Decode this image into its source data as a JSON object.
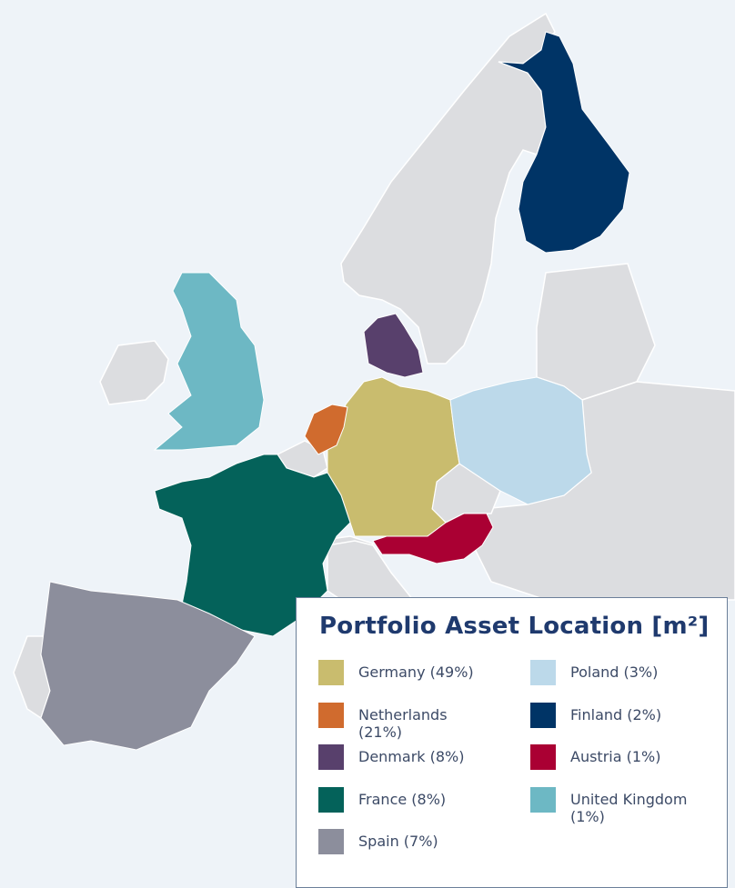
{
  "legend": {
    "title": "Portfolio Asset Location [m²]",
    "items": [
      {
        "label": "Germany (49%)",
        "color": "#c9bc6e"
      },
      {
        "label": "Netherlands (21%)",
        "color": "#d06b2e"
      },
      {
        "label": "Denmark (8%)",
        "color": "#58406c"
      },
      {
        "label": "France (8%)",
        "color": "#04625a"
      },
      {
        "label": "Spain (7%)",
        "color": "#8c8e9c"
      },
      {
        "label": "Poland (3%)",
        "color": "#bcd9ea"
      },
      {
        "label": "Finland (2%)",
        "color": "#003466"
      },
      {
        "label": "Austria (1%)",
        "color": "#aa0033"
      },
      {
        "label": "United Kingdom (1%)",
        "color": "#6db8c4"
      }
    ]
  }
}
